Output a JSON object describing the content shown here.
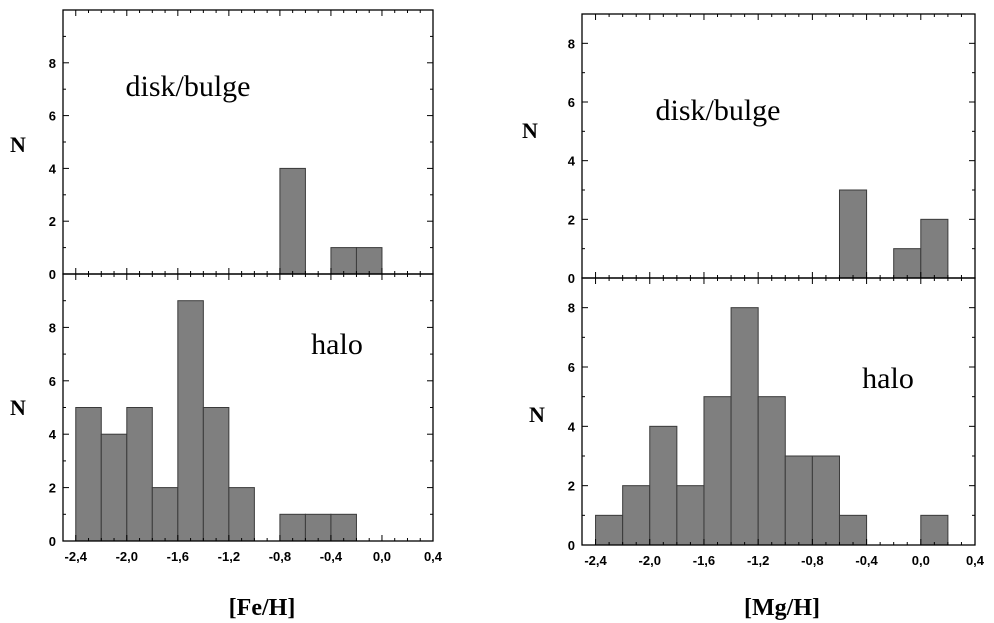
{
  "chart_data": [
    {
      "type": "bar",
      "figure": "left",
      "panel": "top",
      "annotation": "disk/bulge",
      "ylabel": "N",
      "xlabel": "",
      "bin_width": 0.2,
      "bars": [
        {
          "x_left": -0.8,
          "value": 4
        },
        {
          "x_left": -0.4,
          "value": 1
        },
        {
          "x_left": -0.2,
          "value": 1
        }
      ],
      "xlim": [
        -2.5,
        0.4
      ],
      "ylim": [
        0,
        10
      ],
      "yticks": [
        0,
        2,
        4,
        6,
        8
      ],
      "ytick_labels": [
        "0",
        "2",
        "4",
        "6",
        "8"
      ]
    },
    {
      "type": "bar",
      "figure": "left",
      "panel": "bottom",
      "annotation": "halo",
      "ylabel": "N",
      "xlabel": "[Fe/H]",
      "bin_width": 0.2,
      "bars": [
        {
          "x_left": -2.4,
          "value": 5
        },
        {
          "x_left": -2.2,
          "value": 4
        },
        {
          "x_left": -2.0,
          "value": 5
        },
        {
          "x_left": -1.8,
          "value": 2
        },
        {
          "x_left": -1.6,
          "value": 9
        },
        {
          "x_left": -1.4,
          "value": 5
        },
        {
          "x_left": -1.2,
          "value": 2
        },
        {
          "x_left": -0.8,
          "value": 1
        },
        {
          "x_left": -0.6,
          "value": 1
        },
        {
          "x_left": -0.4,
          "value": 1
        }
      ],
      "xlim": [
        -2.5,
        0.4
      ],
      "ylim": [
        0,
        10
      ],
      "yticks": [
        0,
        2,
        4,
        6,
        8
      ],
      "ytick_labels": [
        "0",
        "2",
        "4",
        "6",
        "8"
      ],
      "xticks": [
        -2.4,
        -2.0,
        -1.6,
        -1.2,
        -0.8,
        -0.4,
        0.0,
        0.4
      ],
      "xtick_labels": [
        "-2,4",
        "-2,0",
        "-1,6",
        "-1,2",
        "-0,8",
        "-0,4",
        "0,0",
        "0,4"
      ]
    },
    {
      "type": "bar",
      "figure": "right",
      "panel": "top",
      "annotation": "disk/bulge",
      "ylabel": "N",
      "xlabel": "",
      "bin_width": 0.2,
      "bars": [
        {
          "x_left": -0.6,
          "value": 3
        },
        {
          "x_left": -0.2,
          "value": 1
        },
        {
          "x_left": 0.0,
          "value": 2
        }
      ],
      "xlim": [
        -2.5,
        0.4
      ],
      "ylim": [
        0,
        9
      ],
      "yticks": [
        0,
        2,
        4,
        6,
        8
      ],
      "ytick_labels": [
        "0",
        "2",
        "4",
        "6",
        "8"
      ]
    },
    {
      "type": "bar",
      "figure": "right",
      "panel": "bottom",
      "annotation": "halo",
      "ylabel": "N",
      "xlabel": "[Mg/H]",
      "bin_width": 0.2,
      "bars": [
        {
          "x_left": -2.4,
          "value": 1
        },
        {
          "x_left": -2.2,
          "value": 2
        },
        {
          "x_left": -2.0,
          "value": 4
        },
        {
          "x_left": -1.8,
          "value": 2
        },
        {
          "x_left": -1.6,
          "value": 5
        },
        {
          "x_left": -1.4,
          "value": 8
        },
        {
          "x_left": -1.2,
          "value": 5
        },
        {
          "x_left": -1.0,
          "value": 3
        },
        {
          "x_left": -0.8,
          "value": 3
        },
        {
          "x_left": -0.6,
          "value": 1
        },
        {
          "x_left": 0.0,
          "value": 1
        }
      ],
      "xlim": [
        -2.5,
        0.4
      ],
      "ylim": [
        0,
        9
      ],
      "yticks": [
        0,
        2,
        4,
        6,
        8
      ],
      "ytick_labels": [
        "0",
        "2",
        "4",
        "6",
        "8"
      ],
      "xticks": [
        -2.4,
        -2.0,
        -1.6,
        -1.2,
        -0.8,
        -0.4,
        0.0,
        0.4
      ],
      "xtick_labels": [
        "-2,4",
        "-2,0",
        "-1,6",
        "-1,2",
        "-0,8",
        "-0,4",
        "0,0",
        "0,4"
      ]
    }
  ],
  "style": {
    "bar_fill": "#7f7f7f",
    "bar_stroke": "#3a3a3a",
    "axis_color": "#000000"
  }
}
